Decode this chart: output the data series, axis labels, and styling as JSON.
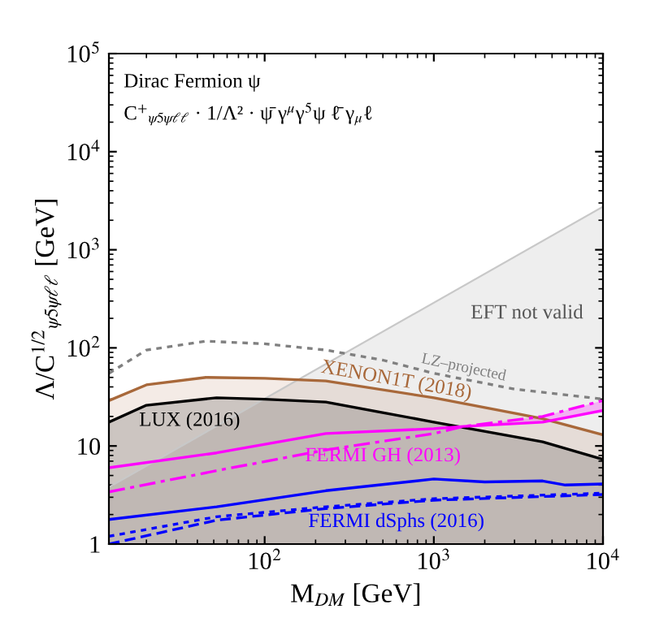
{
  "chart_data": {
    "type": "line",
    "log": "xy",
    "xlabel": "M$_{DM}$ [GeV]",
    "ylabel": "Λ/C$^{1/2}$$_{ψ5ψℓℓ}$ [GeV]",
    "xlim": [
      12,
      10000
    ],
    "ylim": [
      1,
      100000
    ],
    "xticks": [
      {
        "value": 100,
        "label": "10$^{2}$"
      },
      {
        "value": 1000,
        "label": "10$^{3}$"
      },
      {
        "value": 10000,
        "label": "10$^{4}$"
      }
    ],
    "yticks": [
      1,
      10,
      {
        "value": 100,
        "label": "10$^{2}$"
      },
      {
        "value": 1000,
        "label": "10$^{3}$"
      },
      {
        "value": 10000,
        "label": "10$^{4}$"
      },
      {
        "value": 100000,
        "label": "10$^{5}$"
      }
    ],
    "grid": false,
    "legend": false,
    "annotations": [
      "Dirac Fermion ψ",
      "C$^{+}$$_{ψ5ψℓℓ}$ · 1/Λ² · ψ̄ γ$^{μ}$γ$^{5}$ψ ℓ̄ γ$_{μ}$ℓ",
      "EFT not valid"
    ],
    "series": [
      {
        "type": "area",
        "color": "#c8c8c8",
        "x": [
          12,
          10000
        ],
        "values": [
          3.8,
          2750
        ]
      },
      {
        "name": "LZ–projected",
        "line_style": "dotted",
        "color": "#808080",
        "x": [
          12,
          20,
          45,
          100,
          230,
          500,
          1000,
          3000,
          10000
        ],
        "values": [
          55,
          95,
          117,
          110,
          95,
          75,
          55,
          38,
          30
        ]
      },
      {
        "name": "XENON1T (2018)",
        "type": "area",
        "color": "#a8683a",
        "x": [
          12,
          20,
          45,
          100,
          230,
          1000,
          4400,
          10000
        ],
        "values": [
          29,
          42,
          50,
          49,
          46,
          31,
          19,
          13
        ]
      },
      {
        "name": "LUX (2016)",
        "type": "area",
        "color": "#000000",
        "x": [
          12,
          20,
          52,
          100,
          230,
          1000,
          4400,
          10000
        ],
        "values": [
          17.5,
          26,
          31,
          30,
          28,
          17.5,
          11,
          7.3
        ]
      },
      {
        "name": "FERMI GH (2013)",
        "color": "#ff00ff",
        "x": [
          12,
          52,
          230,
          1000,
          1500,
          4400,
          10000
        ],
        "values": [
          6,
          8.5,
          13.4,
          15,
          15.8,
          17.5,
          23
        ]
      },
      {
        "line_style": "dashdot",
        "color": "#ff00ff",
        "x": [
          12,
          52,
          230,
          1000,
          1500,
          4400,
          10000
        ],
        "values": [
          3.4,
          5.6,
          9.1,
          13.4,
          15.8,
          20,
          29
        ],
        "lower": [
          null,
          null,
          null,
          null,
          15.8,
          17.5,
          23
        ],
        "upper": [
          null,
          null,
          null,
          null,
          15.8,
          20,
          29
        ]
      },
      {
        "name": "FERMI dSphs (2016)",
        "color": "#0000ff",
        "x": [
          12,
          52,
          230,
          1000,
          2000,
          4400,
          6000,
          10000
        ],
        "values": [
          1.78,
          2.4,
          3.5,
          4.6,
          4.3,
          4.4,
          4.0,
          4.1
        ]
      },
      {
        "line_style": "dotted",
        "color": "#0000ff",
        "x": [
          12,
          52,
          230,
          1000,
          10000
        ],
        "values": [
          1.2,
          1.9,
          2.4,
          2.9,
          3.3
        ]
      },
      {
        "line_style": "dashed",
        "color": "#0000ff",
        "x": [
          12,
          52,
          230,
          1000,
          10000
        ],
        "values": [
          1.0,
          1.75,
          2.3,
          2.8,
          3.2
        ]
      }
    ]
  }
}
